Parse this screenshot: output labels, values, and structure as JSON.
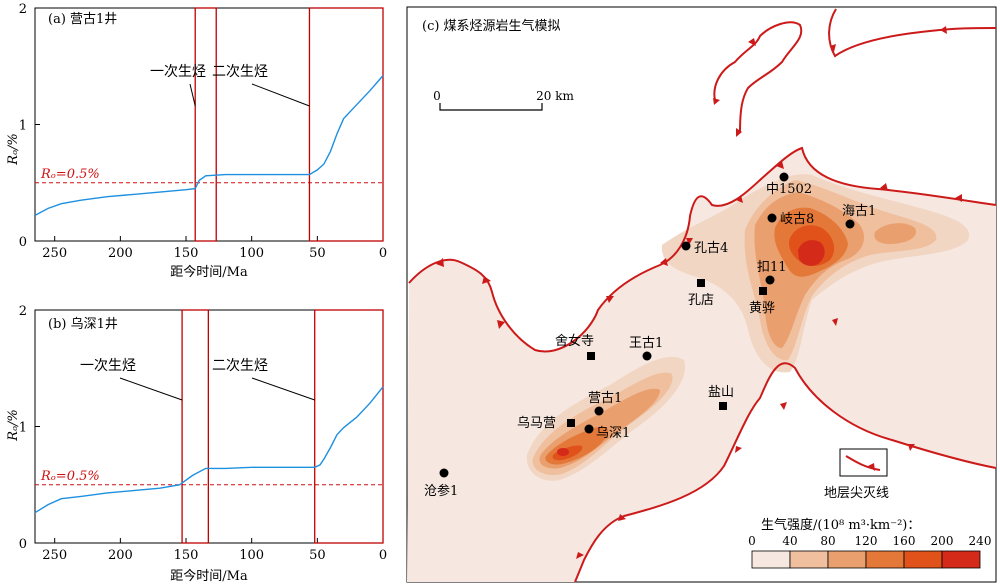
{
  "colors": {
    "curve": "#1e90e0",
    "box": "#c00000",
    "threshold": "#d01010",
    "pinch_line": "#cc1a1a",
    "intensity": [
      "#f6e8e0",
      "#f2d6c4",
      "#efbf9e",
      "#ea9f6e",
      "#e47838",
      "#e0521a",
      "#d42a1a"
    ]
  },
  "charts": [
    {
      "id": "a",
      "type": "line",
      "title_prefix": "(a) ",
      "title_name": "营古1井",
      "xlabel": "距今时间/Ma",
      "ylabel": "Rₒ/%",
      "xlim": [
        265,
        0
      ],
      "ylim": [
        0,
        2
      ],
      "xticks": [
        250,
        200,
        150,
        100,
        50,
        0
      ],
      "yticks": [
        0,
        1,
        2
      ],
      "threshold": 0.5,
      "threshold_label": "Rₒ=0.5%",
      "x": [
        265,
        255,
        245,
        230,
        210,
        190,
        170,
        150,
        143,
        140,
        135,
        120,
        100,
        80,
        60,
        56,
        50,
        45,
        40,
        35,
        30,
        20,
        10,
        0
      ],
      "y": [
        0.22,
        0.28,
        0.32,
        0.35,
        0.38,
        0.4,
        0.42,
        0.44,
        0.45,
        0.52,
        0.56,
        0.57,
        0.57,
        0.57,
        0.57,
        0.57,
        0.61,
        0.66,
        0.77,
        0.92,
        1.05,
        1.17,
        1.29,
        1.42
      ],
      "boxes": [
        {
          "label": "一次生烃",
          "x0": 143,
          "x1": 127
        },
        {
          "label": "二次生烃",
          "x0": 56,
          "x1": 0
        }
      ]
    },
    {
      "id": "b",
      "type": "line",
      "title_prefix": "(b) ",
      "title_name": "乌深1井",
      "xlabel": "距今时间/Ma",
      "ylabel": "Rₒ/%",
      "xlim": [
        265,
        0
      ],
      "ylim": [
        0,
        2
      ],
      "xticks": [
        250,
        200,
        150,
        100,
        50,
        0
      ],
      "yticks": [
        0,
        1,
        2
      ],
      "threshold": 0.5,
      "threshold_label": "Rₒ=0.5%",
      "x": [
        265,
        255,
        245,
        230,
        210,
        190,
        170,
        155,
        145,
        135,
        120,
        100,
        80,
        60,
        52,
        48,
        45,
        40,
        35,
        30,
        20,
        10,
        0
      ],
      "y": [
        0.26,
        0.33,
        0.38,
        0.4,
        0.43,
        0.45,
        0.47,
        0.5,
        0.58,
        0.64,
        0.64,
        0.65,
        0.65,
        0.65,
        0.65,
        0.67,
        0.72,
        0.82,
        0.93,
        0.99,
        1.08,
        1.2,
        1.34
      ],
      "boxes": [
        {
          "label": "一次生烃",
          "x0": 153,
          "x1": 133
        },
        {
          "label": "二次生烃",
          "x0": 52,
          "x1": 0
        }
      ]
    }
  ],
  "map": {
    "title": "(c) 煤系烃源岩生气模拟",
    "scale": {
      "start": "0",
      "end": "20 km"
    },
    "legend_pinch_label": "地层尖灭线",
    "intensity_legend": {
      "title": "生气强度/(10⁸ m³·km⁻²)：",
      "ticks": [
        "0",
        "40",
        "80",
        "120",
        "160",
        "200",
        "240"
      ]
    },
    "wells": [
      "中1502",
      "岐古8",
      "海古1",
      "孔古4",
      "扣11",
      "王古1",
      "营古1",
      "乌深1",
      "沧参1"
    ],
    "towns": [
      "孔店",
      "黄骅",
      "舍女寺",
      "盐山",
      "乌马营"
    ]
  }
}
